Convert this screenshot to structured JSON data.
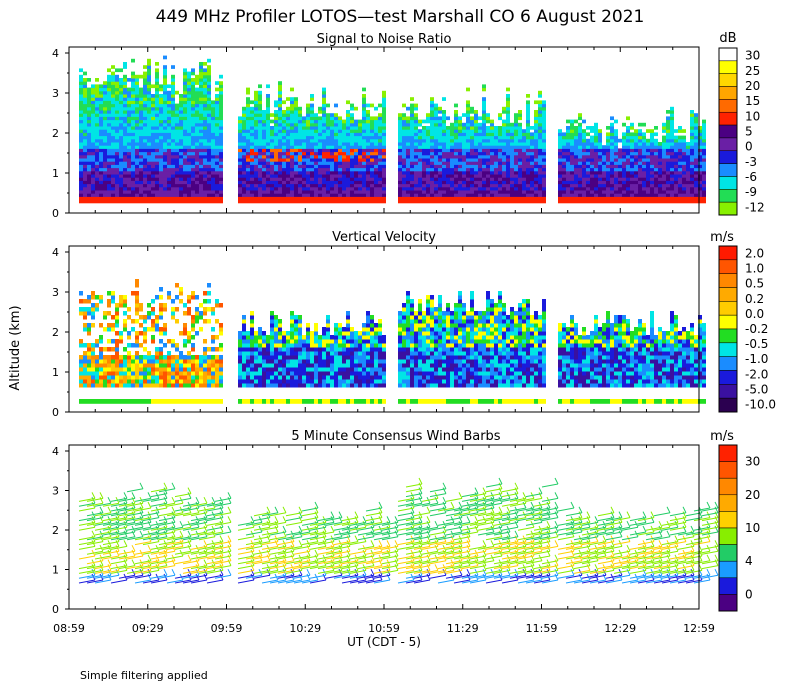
{
  "title": "449 MHz Profiler LOTOS—test Marshall CO  6 August 2021",
  "ylabel": "Altitude (km)",
  "xlabel": "UT  (CDT - 5)",
  "footnote": "Simple filtering applied",
  "chart_data": [
    {
      "type": "heatmap",
      "title": "Signal to Noise Ratio",
      "unit": "dB",
      "ylim": [
        0,
        4
      ],
      "yticks": [
        "0",
        "1",
        "2",
        "3",
        "4"
      ],
      "colorbar_labels": [
        "30",
        "25",
        "20",
        "15",
        "10",
        "5",
        "0",
        "-3",
        "-6",
        "-9",
        "-12"
      ],
      "colors": [
        "#ffffff",
        "#ffff00",
        "#ffd700",
        "#ffa500",
        "#ff6a00",
        "#ff2200",
        "#4b0082",
        "#6a1fa5",
        "#1a1adc",
        "#1a8cff",
        "#00e5e5",
        "#22dd55",
        "#88f000"
      ]
    },
    {
      "type": "heatmap",
      "title": "Vertical Velocity",
      "unit": "m/s",
      "ylim": [
        0,
        4
      ],
      "yticks": [
        "0",
        "1",
        "2",
        "3",
        "4"
      ],
      "colorbar_labels": [
        "2.0",
        "1.0",
        "0.5",
        "0.2",
        "0.0",
        "-0.2",
        "-0.5",
        "-1.0",
        "-2.0",
        "-5.0",
        "-10.0"
      ],
      "colors": [
        "#ff1a00",
        "#ff5500",
        "#ff8800",
        "#ffaa00",
        "#ffcc00",
        "#ffff00",
        "#22dd22",
        "#00e5e5",
        "#1a8cff",
        "#1a1adc",
        "#3a10a0",
        "#2b0050"
      ]
    },
    {
      "type": "scatter",
      "title": "5 Minute Consensus Wind Barbs",
      "unit": "m/s",
      "ylim": [
        0,
        4
      ],
      "yticks": [
        "0",
        "1",
        "2",
        "3",
        "4"
      ],
      "colorbar_labels": [
        "30",
        "20",
        "10",
        "4",
        "0"
      ],
      "colors": [
        "#ff2200",
        "#ff8800",
        "#ffd000",
        "#88ee00",
        "#22cc66",
        "#1a9cff",
        "#1a1adc",
        "#4b0082"
      ]
    }
  ],
  "x_ticks": [
    "08:59",
    "09:29",
    "09:59",
    "10:29",
    "10:59",
    "11:29",
    "11:59",
    "12:29",
    "12:59"
  ]
}
